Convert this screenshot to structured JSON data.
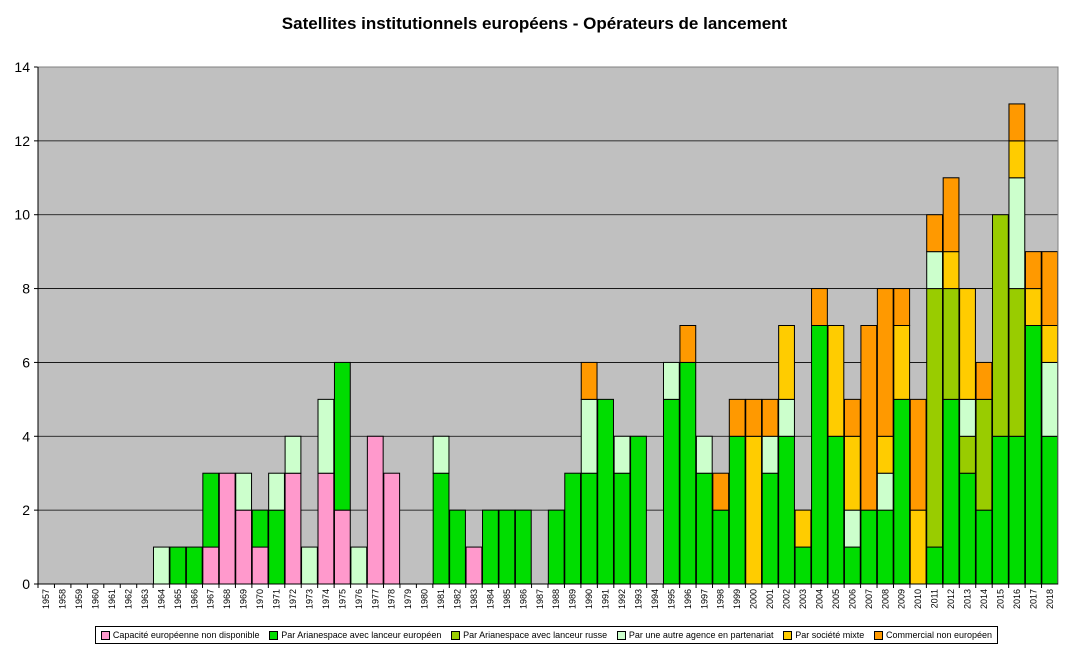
{
  "chart_data": {
    "type": "bar",
    "stacked": true,
    "title": "Satellites institutionnels européens - Opérateurs de lancement",
    "xlabel": "",
    "ylabel": "",
    "ylim": [
      0,
      14
    ],
    "yticks": [
      0,
      2,
      4,
      6,
      8,
      10,
      12,
      14
    ],
    "grid": true,
    "legend_position": "bottom",
    "categories": [
      "1957",
      "1958",
      "1959",
      "1960",
      "1961",
      "1962",
      "1963",
      "1964",
      "1965",
      "1966",
      "1967",
      "1968",
      "1969",
      "1970",
      "1971",
      "1972",
      "1973",
      "1974",
      "1975",
      "1976",
      "1977",
      "1978",
      "1979",
      "1980",
      "1981",
      "1982",
      "1983",
      "1984",
      "1985",
      "1986",
      "1987",
      "1988",
      "1989",
      "1990",
      "1991",
      "1992",
      "1993",
      "1994",
      "1995",
      "1996",
      "1997",
      "1998",
      "1999",
      "2000",
      "2001",
      "2002",
      "2003",
      "2004",
      "2005",
      "2006",
      "2007",
      "2008",
      "2009",
      "2010",
      "2011",
      "2012",
      "2013",
      "2014",
      "2015",
      "2016",
      "2017",
      "2018"
    ],
    "series": [
      {
        "name": "Capacité européenne non disponible",
        "color": "#ff99cc",
        "values": [
          0,
          0,
          0,
          0,
          0,
          0,
          0,
          0,
          0,
          0,
          1,
          3,
          2,
          1,
          0,
          3,
          0,
          3,
          2,
          0,
          4,
          3,
          0,
          0,
          0,
          0,
          1,
          0,
          0,
          0,
          0,
          0,
          0,
          0,
          0,
          0,
          0,
          0,
          0,
          0,
          0,
          0,
          0,
          0,
          0,
          0,
          0,
          0,
          0,
          0,
          0,
          0,
          0,
          0,
          0,
          0,
          0,
          0,
          0,
          0,
          0,
          0
        ]
      },
      {
        "name": "Par Arianespace avec lanceur européen",
        "color": "#00dd00",
        "values": [
          0,
          0,
          0,
          0,
          0,
          0,
          0,
          0,
          1,
          1,
          2,
          0,
          0,
          1,
          2,
          0,
          0,
          0,
          4,
          0,
          0,
          0,
          0,
          0,
          3,
          2,
          0,
          2,
          2,
          2,
          0,
          2,
          3,
          3,
          5,
          3,
          4,
          0,
          5,
          6,
          3,
          2,
          4,
          0,
          3,
          4,
          1,
          7,
          4,
          1,
          2,
          2,
          5,
          0,
          1,
          5,
          3,
          2,
          4,
          4,
          7,
          4
        ]
      },
      {
        "name": "Par Arianespace avec lanceur russe",
        "color": "#99cc00",
        "values": [
          0,
          0,
          0,
          0,
          0,
          0,
          0,
          0,
          0,
          0,
          0,
          0,
          0,
          0,
          0,
          0,
          0,
          0,
          0,
          0,
          0,
          0,
          0,
          0,
          0,
          0,
          0,
          0,
          0,
          0,
          0,
          0,
          0,
          0,
          0,
          0,
          0,
          0,
          0,
          0,
          0,
          0,
          0,
          0,
          0,
          0,
          0,
          0,
          0,
          0,
          0,
          0,
          0,
          0,
          7,
          3,
          1,
          3,
          6,
          4,
          0,
          0
        ]
      },
      {
        "name": "Par une autre agence en partenariat",
        "color": "#ccffcc",
        "values": [
          0,
          0,
          0,
          0,
          0,
          0,
          0,
          1,
          0,
          0,
          0,
          0,
          1,
          0,
          1,
          1,
          1,
          2,
          0,
          1,
          0,
          0,
          0,
          0,
          1,
          0,
          0,
          0,
          0,
          0,
          0,
          0,
          0,
          2,
          0,
          1,
          0,
          0,
          1,
          0,
          1,
          0,
          0,
          0,
          1,
          1,
          0,
          0,
          0,
          1,
          0,
          1,
          0,
          0,
          1,
          0,
          1,
          0,
          0,
          3,
          0,
          2
        ]
      },
      {
        "name": "Par société mixte",
        "color": "#ffcc00",
        "values": [
          0,
          0,
          0,
          0,
          0,
          0,
          0,
          0,
          0,
          0,
          0,
          0,
          0,
          0,
          0,
          0,
          0,
          0,
          0,
          0,
          0,
          0,
          0,
          0,
          0,
          0,
          0,
          0,
          0,
          0,
          0,
          0,
          0,
          0,
          0,
          0,
          0,
          0,
          0,
          0,
          0,
          0,
          0,
          4,
          0,
          2,
          1,
          0,
          3,
          2,
          0,
          1,
          2,
          2,
          0,
          1,
          3,
          0,
          0,
          1,
          1,
          1
        ]
      },
      {
        "name": "Commercial non européen",
        "color": "#ff9900",
        "values": [
          0,
          0,
          0,
          0,
          0,
          0,
          0,
          0,
          0,
          0,
          0,
          0,
          0,
          0,
          0,
          0,
          0,
          0,
          0,
          0,
          0,
          0,
          0,
          0,
          0,
          0,
          0,
          0,
          0,
          0,
          0,
          0,
          0,
          1,
          0,
          0,
          0,
          0,
          0,
          1,
          0,
          1,
          1,
          1,
          1,
          0,
          0,
          1,
          0,
          1,
          5,
          4,
          1,
          3,
          1,
          2,
          0,
          1,
          0,
          1,
          1,
          2
        ]
      }
    ]
  },
  "colors": {
    "plot_background": "#c0c0c0",
    "gridline": "#000000"
  }
}
